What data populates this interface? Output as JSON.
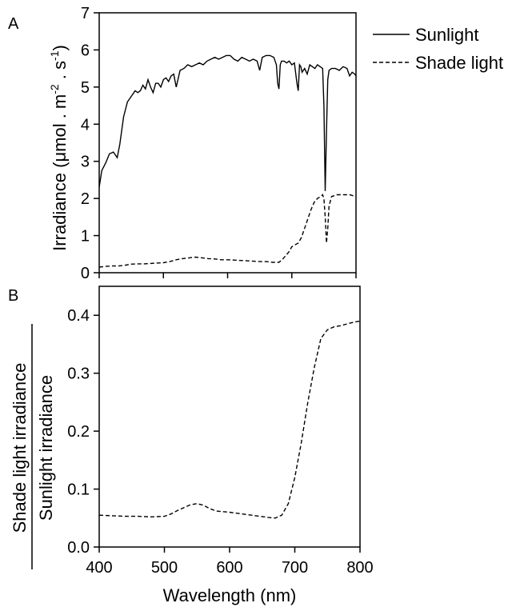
{
  "chart_data": [
    {
      "panel": "A",
      "type": "line",
      "xlabel": "",
      "ylabel": "Irradiance (μmol . m",
      "ylabel_exp1": "-2",
      "ylabel_mid": " . s",
      "ylabel_exp2": "-1",
      "ylabel_end": ")",
      "xlim": [
        400,
        800
      ],
      "ylim": [
        0,
        7
      ],
      "yticks": [
        "0",
        "1",
        "2",
        "3",
        "4",
        "5",
        "6",
        "7"
      ],
      "legend": "top-right",
      "series": [
        {
          "name": "Sunlight",
          "style": "solid",
          "x": [
            400,
            404,
            410,
            416,
            422,
            428,
            432,
            438,
            444,
            450,
            456,
            460,
            464,
            468,
            472,
            476,
            480,
            484,
            488,
            492,
            496,
            500,
            504,
            508,
            512,
            516,
            520,
            526,
            532,
            538,
            544,
            550,
            556,
            562,
            568,
            574,
            580,
            586,
            592,
            598,
            604,
            610,
            616,
            622,
            628,
            634,
            640,
            646,
            650,
            654,
            660,
            666,
            672,
            676,
            678,
            680,
            682,
            684,
            688,
            692,
            696,
            700,
            704,
            708,
            710,
            712,
            714,
            716,
            720,
            724,
            728,
            732,
            736,
            740,
            744,
            748,
            750,
            752,
            754,
            756,
            758,
            762,
            768,
            774,
            780,
            786,
            790,
            794,
            798,
            800
          ],
          "y": [
            2.3,
            2.75,
            2.95,
            3.2,
            3.25,
            3.1,
            3.45,
            4.2,
            4.6,
            4.75,
            4.9,
            4.85,
            4.9,
            5.05,
            4.95,
            5.2,
            5.0,
            4.85,
            5.1,
            5.1,
            5.0,
            5.2,
            5.25,
            5.15,
            5.3,
            5.35,
            5.0,
            5.45,
            5.5,
            5.6,
            5.55,
            5.6,
            5.65,
            5.6,
            5.7,
            5.75,
            5.8,
            5.75,
            5.8,
            5.85,
            5.85,
            5.75,
            5.7,
            5.8,
            5.75,
            5.7,
            5.75,
            5.7,
            5.45,
            5.8,
            5.85,
            5.85,
            5.8,
            5.6,
            5.1,
            4.95,
            5.6,
            5.7,
            5.7,
            5.65,
            5.7,
            5.6,
            5.65,
            5.1,
            4.9,
            5.6,
            5.55,
            5.4,
            5.5,
            5.35,
            5.6,
            5.55,
            5.5,
            5.6,
            5.55,
            5.5,
            4.5,
            2.2,
            3.8,
            5.2,
            5.45,
            5.5,
            5.5,
            5.45,
            5.55,
            5.5,
            5.3,
            5.4,
            5.35,
            5.3
          ]
        },
        {
          "name": "Shade light",
          "style": "dashed",
          "x": [
            400,
            410,
            420,
            430,
            440,
            450,
            460,
            470,
            480,
            490,
            500,
            510,
            520,
            530,
            540,
            550,
            560,
            570,
            580,
            590,
            600,
            610,
            620,
            630,
            640,
            650,
            660,
            670,
            680,
            685,
            690,
            695,
            700,
            705,
            710,
            715,
            720,
            725,
            730,
            735,
            740,
            745,
            748,
            750,
            752,
            754,
            756,
            758,
            762,
            770,
            780,
            790,
            800
          ],
          "y": [
            0.15,
            0.17,
            0.18,
            0.18,
            0.2,
            0.23,
            0.24,
            0.24,
            0.25,
            0.26,
            0.27,
            0.3,
            0.35,
            0.38,
            0.4,
            0.42,
            0.4,
            0.38,
            0.37,
            0.35,
            0.35,
            0.34,
            0.33,
            0.32,
            0.31,
            0.3,
            0.3,
            0.28,
            0.28,
            0.35,
            0.45,
            0.55,
            0.7,
            0.75,
            0.8,
            0.95,
            1.2,
            1.45,
            1.7,
            1.9,
            2.0,
            2.05,
            2.1,
            2.0,
            1.5,
            0.8,
            1.2,
            1.8,
            2.05,
            2.1,
            2.1,
            2.1,
            2.05
          ]
        }
      ]
    },
    {
      "panel": "B",
      "type": "line",
      "xlabel": "Wavelength (nm)",
      "ylabel_top": "Shade light irradiance",
      "ylabel_bottom": "Sunlight irradiance",
      "xlim": [
        400,
        800
      ],
      "ylim": [
        0,
        0.45
      ],
      "xticks": [
        "400",
        "500",
        "600",
        "700",
        "800"
      ],
      "yticks": [
        "0.0",
        "0.1",
        "0.2",
        "0.3",
        "0.4"
      ],
      "series": [
        {
          "style": "dashed",
          "x": [
            400,
            420,
            440,
            460,
            480,
            500,
            510,
            520,
            530,
            540,
            550,
            560,
            570,
            580,
            600,
            620,
            640,
            660,
            670,
            680,
            690,
            700,
            710,
            720,
            730,
            740,
            750,
            760,
            770,
            780,
            790,
            800
          ],
          "y": [
            0.055,
            0.054,
            0.053,
            0.053,
            0.052,
            0.053,
            0.057,
            0.063,
            0.068,
            0.073,
            0.075,
            0.072,
            0.066,
            0.062,
            0.06,
            0.057,
            0.054,
            0.051,
            0.05,
            0.055,
            0.075,
            0.12,
            0.18,
            0.25,
            0.31,
            0.36,
            0.375,
            0.38,
            0.382,
            0.385,
            0.388,
            0.39
          ]
        }
      ]
    }
  ]
}
